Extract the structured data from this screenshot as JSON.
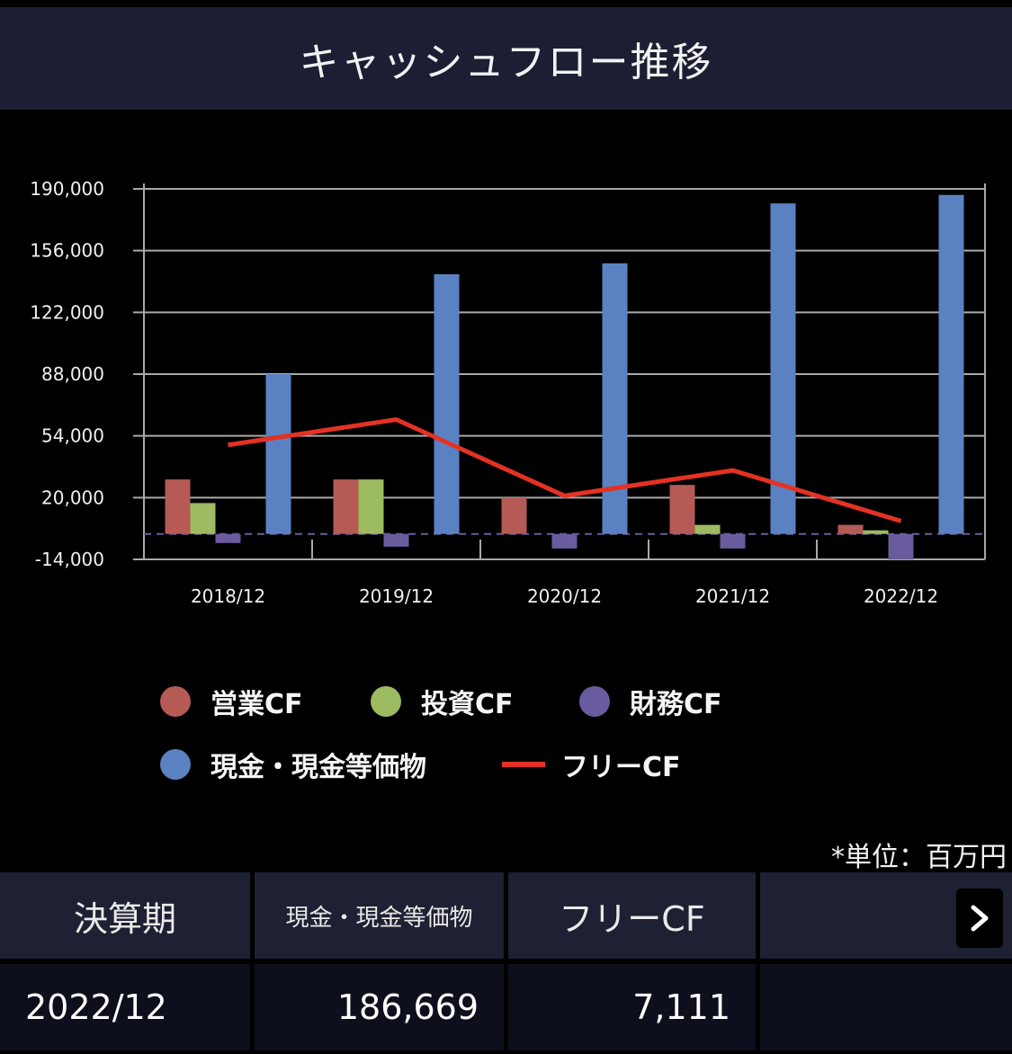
{
  "title": "キャッシュフロー推移",
  "chart_data": {
    "type": "bar",
    "categories": [
      "2018/12",
      "2019/12",
      "2020/12",
      "2021/12",
      "2022/12"
    ],
    "series": [
      {
        "name": "営業CF",
        "type": "bar",
        "color": "#b55a55",
        "values": [
          30000,
          30000,
          20000,
          27000,
          5000
        ]
      },
      {
        "name": "投資CF",
        "type": "bar",
        "color": "#9dbb61",
        "values": [
          17000,
          30000,
          0,
          5000,
          2000
        ]
      },
      {
        "name": "財務CF",
        "type": "bar",
        "color": "#6a5b9e",
        "values": [
          -5000,
          -7000,
          -8000,
          -8000,
          -14000
        ]
      },
      {
        "name": "現金・現金等価物",
        "type": "bar",
        "color": "#5a82c2",
        "values": [
          88000,
          143000,
          149000,
          182000,
          186669
        ]
      },
      {
        "name": "フリーCF",
        "type": "line",
        "color": "#e33224",
        "values": [
          49000,
          63000,
          21000,
          35000,
          7111
        ]
      }
    ],
    "ylim": [
      -14000,
      190000
    ],
    "yticks": [
      "190,000",
      "156,000",
      "122,000",
      "88,000",
      "54,000",
      "20,000",
      "-14,000"
    ],
    "ytick_values": [
      190000,
      156000,
      122000,
      88000,
      54000,
      20000,
      -14000
    ],
    "grid": true,
    "legend_position": "bottom"
  },
  "unit_note": "*単位：百万円",
  "table": {
    "headers": [
      "決算期",
      "現金・現金等価物",
      "フリーCF",
      ""
    ],
    "row": [
      "2022/12",
      "186,669",
      "7,111",
      ""
    ],
    "next_icon": "chevron-right-icon"
  }
}
